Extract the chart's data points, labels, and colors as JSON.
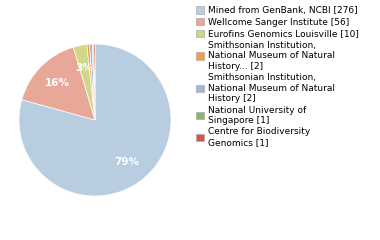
{
  "slices": [
    276,
    56,
    10,
    2,
    2,
    1,
    1
  ],
  "colors": [
    "#b8cde0",
    "#e8a898",
    "#d0d888",
    "#f0a040",
    "#a0b8d8",
    "#88b870",
    "#d05848"
  ],
  "labels": [
    "Mined from GenBank, NCBI [276]",
    "Wellcome Sanger Institute [56]",
    "Eurofins Genomics Louisville [10]",
    "Smithsonian Institution,\nNational Museum of Natural\nHistory... [2]",
    "Smithsonian Institution,\nNational Museum of Natural\nHistory [2]",
    "National University of\nSingapore [1]",
    "Centre for Biodiversity\nGeномics [1]"
  ],
  "labels_plain": [
    "Mined from GenBank, NCBI [276]",
    "Wellcome Sanger Institute [56]",
    "Eurofins Genomics Louisville [10]",
    "Smithsonian Institution,\nNational Museum of Natural\nHistory... [2]",
    "Smithsonian Institution,\nNational Museum of Natural\nHistory [2]",
    "National University of\nSingapore [1]",
    "Centre for Biodiversity\nGenomics [1]"
  ],
  "legend_fontsize": 6.5,
  "background_color": "#ffffff",
  "startangle": 90,
  "pct_threshold": 2.5
}
